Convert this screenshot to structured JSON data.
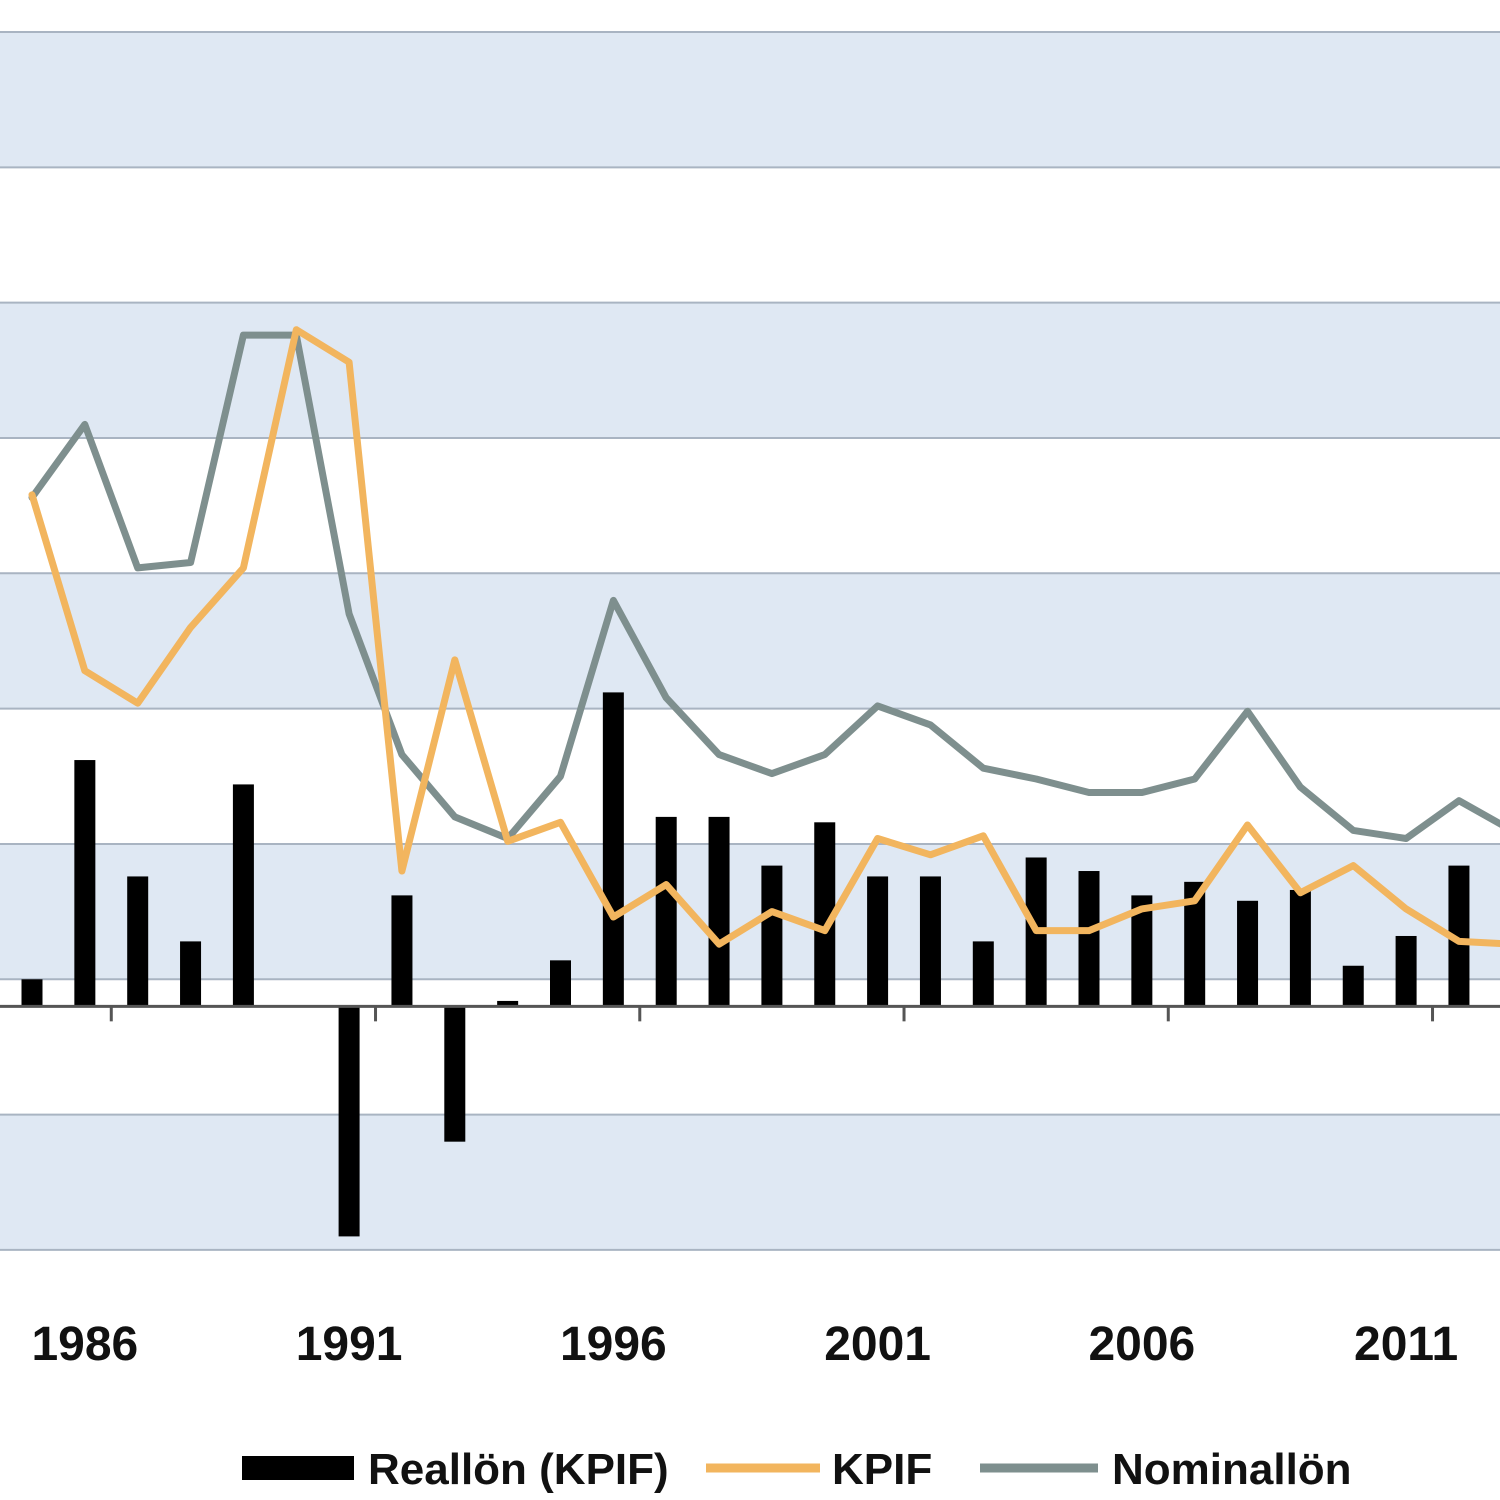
{
  "chart_data": {
    "type": "bar",
    "x": [
      1985,
      1986,
      1987,
      1988,
      1989,
      1990,
      1991,
      1992,
      1993,
      1994,
      1995,
      1996,
      1997,
      1998,
      1999,
      2000,
      2001,
      2002,
      2003,
      2004,
      2005,
      2006,
      2007,
      2008,
      2009,
      2010,
      2011,
      2012,
      2013
    ],
    "tick_labels": [
      "1986",
      "1991",
      "1996",
      "2001",
      "2006",
      "2011"
    ],
    "tick_years": [
      1986,
      1991,
      1996,
      2001,
      2006,
      2011
    ],
    "ylim": [
      -10,
      36
    ],
    "grid": true,
    "legend_position": "bottom",
    "series": [
      {
        "name": "Reallön (KPIF)",
        "kind": "bar",
        "color": "#000000",
        "values": [
          1.0,
          9.1,
          4.8,
          2.4,
          8.2,
          0.0,
          -8.5,
          4.1,
          -5.0,
          0.2,
          1.7,
          11.6,
          7.0,
          7.0,
          5.2,
          6.8,
          4.8,
          4.8,
          2.4,
          5.5,
          5.0,
          4.1,
          4.6,
          3.9,
          4.3,
          1.5,
          2.6,
          5.2,
          4.1
        ]
      },
      {
        "name": "KPIF",
        "kind": "line",
        "color": "#F2B55E",
        "values": [
          18.9,
          12.4,
          11.2,
          14.0,
          16.2,
          25.0,
          23.8,
          5.0,
          12.8,
          6.1,
          6.8,
          3.3,
          4.5,
          2.3,
          3.5,
          2.8,
          6.2,
          5.6,
          6.3,
          2.8,
          2.8,
          3.6,
          3.9,
          6.7,
          4.2,
          5.2,
          3.6,
          2.4,
          2.3
        ]
      },
      {
        "name": "Nominallön",
        "kind": "line",
        "color": "#7E8F8E",
        "values": [
          18.8,
          21.5,
          16.2,
          16.4,
          24.8,
          24.8,
          14.5,
          9.3,
          7.0,
          6.2,
          8.5,
          15.0,
          11.4,
          9.3,
          8.6,
          9.3,
          11.1,
          10.4,
          8.8,
          8.4,
          7.9,
          7.9,
          8.4,
          10.9,
          8.1,
          6.5,
          6.2,
          7.6,
          6.5
        ]
      }
    ]
  }
}
